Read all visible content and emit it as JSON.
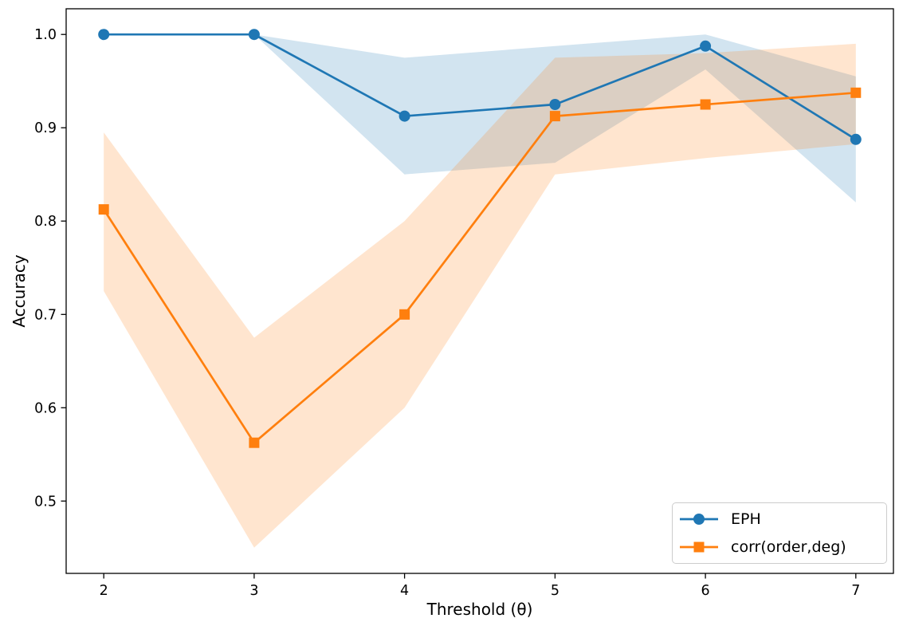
{
  "figure": {
    "background_color": "#ffffff",
    "text_color": "#000000",
    "spine_color": "#000000"
  },
  "chart_data": {
    "type": "line",
    "title": "",
    "xlabel": "Threshold (θ)",
    "ylabel": "Accuracy",
    "x": [
      2,
      3,
      4,
      5,
      6,
      7
    ],
    "xlim": [
      1.75,
      7.25
    ],
    "ylim": [
      0.4225,
      1.0275
    ],
    "xtick_labels": [
      "2",
      "3",
      "4",
      "5",
      "6",
      "7"
    ],
    "xtick_values": [
      2,
      3,
      4,
      5,
      6,
      7
    ],
    "ytick_labels": [
      "0.5",
      "0.6",
      "0.7",
      "0.8",
      "0.9",
      "1.0"
    ],
    "ytick_values": [
      0.5,
      0.6,
      0.7,
      0.8,
      0.9,
      1.0
    ],
    "grid": false,
    "legend_position": "lower right",
    "band_alpha": 0.2,
    "series": [
      {
        "name": "EPH",
        "color": "#1f77b4",
        "marker": "circle",
        "values": [
          1.0,
          1.0,
          0.9125,
          0.925,
          0.9875,
          0.8875
        ],
        "band_lower": [
          1.0,
          1.0,
          0.85,
          0.8625,
          0.9625,
          0.82
        ],
        "band_upper": [
          1.0,
          1.0,
          0.975,
          0.9875,
          1.0,
          0.955
        ]
      },
      {
        "name": "corr(order,deg)",
        "color": "#ff7f0e",
        "marker": "square",
        "values": [
          0.8125,
          0.5625,
          0.7,
          0.9125,
          0.925,
          0.9375
        ],
        "band_lower": [
          0.725,
          0.45,
          0.6,
          0.85,
          0.8675,
          0.8825
        ],
        "band_upper": [
          0.895,
          0.675,
          0.8,
          0.975,
          0.98,
          0.99
        ]
      }
    ]
  }
}
